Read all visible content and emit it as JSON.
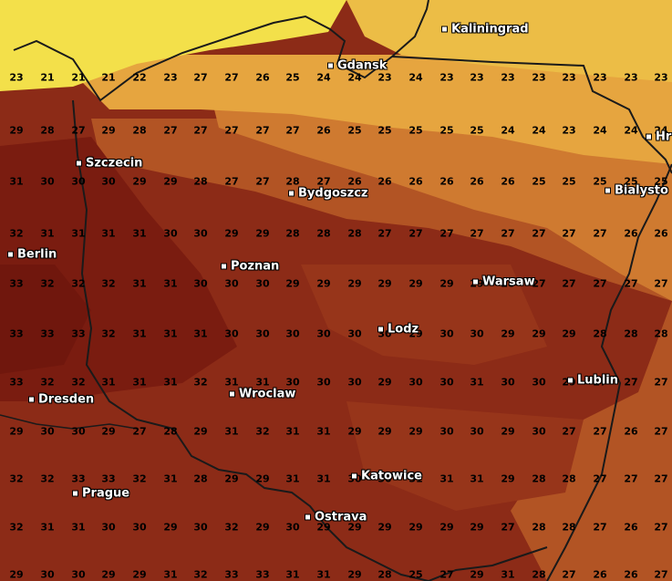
{
  "palette": {
    "c21": "#f3e04a",
    "c22": "#ecbd46",
    "c23": "#e6a53f",
    "c24": "#dc9038",
    "c25": "#cf7a30",
    "c26": "#c0652a",
    "c27": "#b25424",
    "c28": "#a4421e",
    "c29": "#97351a",
    "c30": "#8c2b17",
    "c31": "#832313",
    "c32": "#7a1c10",
    "c33": "#70170d"
  },
  "cities": [
    {
      "name": "Kaliningrad",
      "icon": "city-marker-icon"
    },
    {
      "name": "Gdansk",
      "icon": "city-marker-icon"
    },
    {
      "name": "Hr",
      "icon": "city-marker-icon"
    },
    {
      "name": "Szczecin",
      "icon": "city-marker-icon"
    },
    {
      "name": "Bydgoszcz",
      "icon": "city-marker-icon"
    },
    {
      "name": "Bialysto",
      "icon": "city-marker-icon"
    },
    {
      "name": "Berlin",
      "icon": "city-marker-icon"
    },
    {
      "name": "Poznan",
      "icon": "city-marker-icon"
    },
    {
      "name": "Warsaw",
      "icon": "city-marker-icon"
    },
    {
      "name": "Lodz",
      "icon": "city-marker-icon"
    },
    {
      "name": "Lublin",
      "icon": "city-marker-icon"
    },
    {
      "name": "Dresden",
      "icon": "city-marker-icon"
    },
    {
      "name": "Wroclaw",
      "icon": "city-marker-icon"
    },
    {
      "name": "Katowice",
      "icon": "city-marker-icon"
    },
    {
      "name": "Prague",
      "icon": "city-marker-icon"
    },
    {
      "name": "Ostrava",
      "icon": "city-marker-icon"
    }
  ],
  "temperatures": [
    [
      "23",
      "21",
      "21",
      "21",
      "22",
      "23",
      "27",
      "27",
      "26",
      "25",
      "24",
      "24",
      "23",
      "24",
      "23",
      "23",
      "23",
      "23",
      "23",
      "23",
      "23",
      "23"
    ],
    [
      "29",
      "28",
      "27",
      "29",
      "28",
      "27",
      "27",
      "27",
      "27",
      "27",
      "26",
      "25",
      "25",
      "25",
      "25",
      "25",
      "24",
      "24",
      "23",
      "24",
      "24",
      "24"
    ],
    [
      "31",
      "30",
      "30",
      "30",
      "29",
      "29",
      "28",
      "27",
      "27",
      "28",
      "27",
      "26",
      "26",
      "26",
      "26",
      "26",
      "26",
      "25",
      "25",
      "25",
      "25",
      "25"
    ],
    [
      "32",
      "31",
      "31",
      "31",
      "31",
      "30",
      "30",
      "29",
      "29",
      "28",
      "28",
      "28",
      "27",
      "27",
      "27",
      "27",
      "27",
      "27",
      "27",
      "27",
      "26",
      "26"
    ],
    [
      "33",
      "32",
      "32",
      "32",
      "31",
      "31",
      "30",
      "30",
      "30",
      "29",
      "29",
      "29",
      "29",
      "29",
      "29",
      "29",
      "28",
      "27",
      "27",
      "27",
      "27",
      "27"
    ],
    [
      "33",
      "33",
      "33",
      "32",
      "31",
      "31",
      "31",
      "30",
      "30",
      "30",
      "30",
      "30",
      "30",
      "29",
      "30",
      "30",
      "29",
      "29",
      "29",
      "28",
      "28",
      "28"
    ],
    [
      "33",
      "32",
      "32",
      "31",
      "31",
      "31",
      "32",
      "31",
      "31",
      "30",
      "30",
      "30",
      "29",
      "30",
      "30",
      "31",
      "30",
      "30",
      "29",
      "27",
      "27",
      "27"
    ],
    [
      "29",
      "30",
      "30",
      "29",
      "27",
      "28",
      "29",
      "31",
      "32",
      "31",
      "31",
      "29",
      "29",
      "29",
      "30",
      "30",
      "29",
      "30",
      "27",
      "27",
      "26",
      "27"
    ],
    [
      "32",
      "32",
      "33",
      "33",
      "32",
      "31",
      "28",
      "29",
      "29",
      "31",
      "31",
      "30",
      "30",
      "31",
      "31",
      "31",
      "29",
      "28",
      "28",
      "27",
      "27",
      "27"
    ],
    [
      "32",
      "31",
      "31",
      "30",
      "30",
      "29",
      "30",
      "32",
      "29",
      "30",
      "29",
      "29",
      "29",
      "29",
      "29",
      "29",
      "27",
      "28",
      "28",
      "27",
      "26",
      "27"
    ],
    [
      "29",
      "30",
      "30",
      "29",
      "29",
      "31",
      "32",
      "33",
      "33",
      "31",
      "31",
      "29",
      "28",
      "25",
      "27",
      "29",
      "31",
      "28",
      "27",
      "26",
      "26",
      "27"
    ]
  ]
}
